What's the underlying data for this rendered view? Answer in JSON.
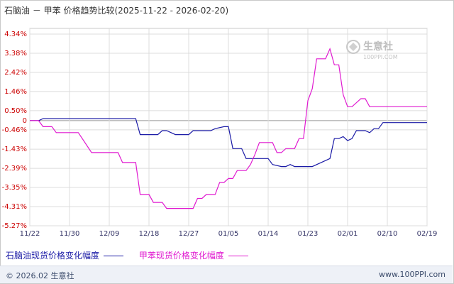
{
  "title": "石脑油 － 甲苯 价格趋势比较(2025-11-22 - 2026-02-20)",
  "watermark": {
    "name": "生意社",
    "url": "100PPI.COM"
  },
  "footer": {
    "copyright": "© 2026.02 生意社",
    "site": "www.100PPI.com"
  },
  "colors": {
    "naphtha": "#1a1aa6",
    "toluene": "#e01ad0",
    "grid": "#dcdcdc",
    "zero": "#999999"
  },
  "chart_data": {
    "type": "line",
    "x_tick_labels": [
      "11/22",
      "11/30",
      "12/09",
      "12/18",
      "12/27",
      "01/05",
      "01/14",
      "01/23",
      "02/01",
      "02/10",
      "02/19"
    ],
    "x_range": [
      "2025-11-22",
      "2026-02-20"
    ],
    "y_tick_labels": [
      "4.34%",
      "3.38%",
      "2.42%",
      "1.46%",
      "0.50%",
      "0",
      "-0.46%",
      "-1.43%",
      "-2.39%",
      "-3.35%",
      "-4.31%",
      "-5.27%"
    ],
    "y_ticks": [
      4.34,
      3.38,
      2.42,
      1.46,
      0.5,
      0,
      -0.46,
      -1.43,
      -2.39,
      -3.35,
      -4.31,
      -5.27
    ],
    "ylim": [
      -5.27,
      4.34
    ],
    "grid": true,
    "legend_position": "bottom",
    "series": [
      {
        "name": "石脑油现货价格变化幅度",
        "color": "#1a1aa6",
        "points": [
          [
            "2025-11-22",
            0
          ],
          [
            "2025-11-24",
            0
          ],
          [
            "2025-11-25",
            0.1
          ],
          [
            "2025-12-16",
            0.1
          ],
          [
            "2025-12-17",
            -0.7
          ],
          [
            "2025-12-21",
            -0.7
          ],
          [
            "2025-12-22",
            -0.5
          ],
          [
            "2025-12-23",
            -0.5
          ],
          [
            "2025-12-25",
            -0.7
          ],
          [
            "2025-12-28",
            -0.7
          ],
          [
            "2025-12-29",
            -0.5
          ],
          [
            "2026-01-02",
            -0.5
          ],
          [
            "2026-01-03",
            -0.4
          ],
          [
            "2026-01-05",
            -0.3
          ],
          [
            "2026-01-06",
            -0.3
          ],
          [
            "2026-01-07",
            -1.4
          ],
          [
            "2026-01-09",
            -1.4
          ],
          [
            "2026-01-10",
            -1.9
          ],
          [
            "2026-01-15",
            -1.9
          ],
          [
            "2026-01-16",
            -2.2
          ],
          [
            "2026-01-18",
            -2.3
          ],
          [
            "2026-01-19",
            -2.3
          ],
          [
            "2026-01-20",
            -2.2
          ],
          [
            "2026-01-21",
            -2.3
          ],
          [
            "2026-01-25",
            -2.3
          ],
          [
            "2026-01-27",
            -2.1
          ],
          [
            "2026-01-29",
            -1.9
          ],
          [
            "2026-01-30",
            -0.9
          ],
          [
            "2026-01-31",
            -0.9
          ],
          [
            "2026-02-01",
            -0.8
          ],
          [
            "2026-02-02",
            -1.0
          ],
          [
            "2026-02-03",
            -0.9
          ],
          [
            "2026-02-04",
            -0.5
          ],
          [
            "2026-02-06",
            -0.5
          ],
          [
            "2026-02-07",
            -0.6
          ],
          [
            "2026-02-08",
            -0.4
          ],
          [
            "2026-02-09",
            -0.4
          ],
          [
            "2026-02-10",
            -0.1
          ],
          [
            "2026-02-20",
            -0.1
          ]
        ]
      },
      {
        "name": "甲苯现货价格变化幅度",
        "color": "#e01ad0",
        "points": [
          [
            "2025-11-22",
            0
          ],
          [
            "2025-11-24",
            0
          ],
          [
            "2025-11-25",
            -0.3
          ],
          [
            "2025-11-27",
            -0.3
          ],
          [
            "2025-11-28",
            -0.6
          ],
          [
            "2025-12-03",
            -0.6
          ],
          [
            "2025-12-06",
            -1.6
          ],
          [
            "2025-12-12",
            -1.6
          ],
          [
            "2025-12-13",
            -2.1
          ],
          [
            "2025-12-16",
            -2.1
          ],
          [
            "2025-12-17",
            -3.7
          ],
          [
            "2025-12-19",
            -3.7
          ],
          [
            "2025-12-20",
            -4.1
          ],
          [
            "2025-12-22",
            -4.1
          ],
          [
            "2025-12-23",
            -4.4
          ],
          [
            "2025-12-29",
            -4.4
          ],
          [
            "2025-12-30",
            -3.9
          ],
          [
            "2025-12-31",
            -3.9
          ],
          [
            "2026-01-01",
            -3.7
          ],
          [
            "2026-01-03",
            -3.7
          ],
          [
            "2026-01-04",
            -3.1
          ],
          [
            "2026-01-05",
            -3.1
          ],
          [
            "2026-01-06",
            -2.9
          ],
          [
            "2026-01-07",
            -2.9
          ],
          [
            "2026-01-08",
            -2.5
          ],
          [
            "2026-01-10",
            -2.5
          ],
          [
            "2026-01-11",
            -2.2
          ],
          [
            "2026-01-12",
            -1.7
          ],
          [
            "2026-01-13",
            -1.1
          ],
          [
            "2026-01-16",
            -1.1
          ],
          [
            "2026-01-17",
            -1.6
          ],
          [
            "2026-01-18",
            -1.6
          ],
          [
            "2026-01-19",
            -1.4
          ],
          [
            "2026-01-21",
            -1.4
          ],
          [
            "2026-01-22",
            -0.9
          ],
          [
            "2026-01-23",
            -0.9
          ],
          [
            "2026-01-24",
            1.0
          ],
          [
            "2026-01-25",
            1.6
          ],
          [
            "2026-01-26",
            3.1
          ],
          [
            "2026-01-28",
            3.1
          ],
          [
            "2026-01-29",
            3.6
          ],
          [
            "2026-01-30",
            2.8
          ],
          [
            "2026-01-31",
            2.8
          ],
          [
            "2026-02-01",
            1.3
          ],
          [
            "2026-02-02",
            0.7
          ],
          [
            "2026-02-03",
            0.7
          ],
          [
            "2026-02-05",
            1.1
          ],
          [
            "2026-02-06",
            1.1
          ],
          [
            "2026-02-07",
            0.7
          ],
          [
            "2026-02-20",
            0.7
          ]
        ]
      }
    ]
  }
}
